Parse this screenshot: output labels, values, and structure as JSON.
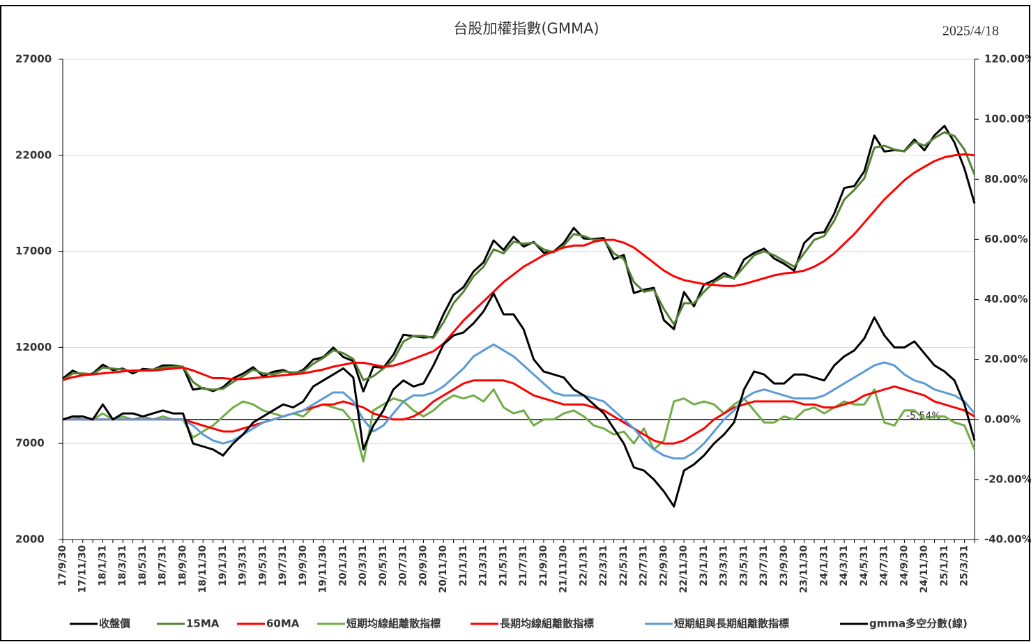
{
  "chart_data": {
    "type": "line",
    "title": "台股加權指數(GMMA)",
    "date": "2025/4/18",
    "annotation": "-5.54%",
    "categories": [
      "17/9/30",
      null,
      "17/11/30",
      null,
      "18/1/31",
      null,
      "18/3/31",
      null,
      "18/5/31",
      null,
      "18/7/31",
      null,
      "18/9/30",
      null,
      "18/11/30",
      null,
      "19/1/31",
      null,
      "19/3/31",
      null,
      "19/5/31",
      null,
      "19/7/31",
      null,
      "19/9/30",
      null,
      "19/11/30",
      null,
      "20/1/31",
      null,
      "20/3/31",
      null,
      "20/5/31",
      null,
      "20/7/31",
      null,
      "20/9/30",
      null,
      "20/11/30",
      null,
      "21/1/31",
      null,
      "21/3/31",
      null,
      "21/5/31",
      null,
      "21/7/31",
      null,
      "21/9/30",
      null,
      "21/11/30",
      null,
      "22/1/31",
      null,
      "22/3/31",
      null,
      "22/5/31",
      null,
      "22/7/31",
      null,
      "22/9/30",
      null,
      "22/11/30",
      null,
      "23/1/31",
      null,
      "23/3/31",
      null,
      "23/5/31",
      null,
      "23/7/31",
      null,
      "23/9/30",
      null,
      "23/11/30",
      null,
      "24/1/31",
      null,
      "24/3/31",
      null,
      "24/5/31",
      null,
      "24/7/31",
      null,
      "24/9/30",
      null,
      "24/11/30",
      null,
      "25/1/31",
      null,
      "25/3/31",
      null
    ],
    "ylim": [
      2000,
      27000
    ],
    "yticks": [
      2000,
      7000,
      12000,
      17000,
      22000,
      27000
    ],
    "y2lim": [
      -40,
      120
    ],
    "y2ticks": [
      {
        "value": -40,
        "label": "-40.00%"
      },
      {
        "value": -20,
        "label": "-20.00%"
      },
      {
        "value": 0,
        "label": "0.00%"
      },
      {
        "value": 20,
        "label": "20.00%"
      },
      {
        "value": 40,
        "label": "40.00%"
      },
      {
        "value": 60,
        "label": "60.00%"
      },
      {
        "value": 80,
        "label": "80.00%"
      },
      {
        "value": 100,
        "label": "100.00%"
      },
      {
        "value": 120,
        "label": "120.00%"
      }
    ],
    "grid": true,
    "series": [
      {
        "name": "收盤價",
        "color": "#000000",
        "values": [
          10380,
          10790,
          10560,
          10640,
          11100,
          10820,
          10900,
          10650,
          10880,
          10840,
          11060,
          11060,
          10990,
          9800,
          9890,
          9730,
          9930,
          10390,
          10640,
          10970,
          10500,
          10730,
          10820,
          10620,
          10830,
          11360,
          11490,
          11990,
          11500,
          11290,
          9710,
          10990,
          10940,
          11620,
          12660,
          12590,
          12520,
          12550,
          13720,
          14730,
          15140,
          15950,
          16430,
          17570,
          17070,
          17760,
          17250,
          17490,
          16930,
          16990,
          17430,
          18220,
          17670,
          17650,
          17690,
          16590,
          16810,
          14830,
          15000,
          15100,
          13420,
          12950,
          14880,
          14140,
          15270,
          15500,
          15870,
          15580,
          16580,
          16920,
          17140,
          16630,
          16350,
          16000,
          17430,
          17930,
          18000,
          18970,
          20300,
          20400,
          21170,
          23030,
          22200,
          22270,
          22220,
          22820,
          22260,
          23040,
          23530,
          22660,
          21300,
          19500
        ]
      },
      {
        "name": "15MA",
        "color": "#548235",
        "values": [
          10300,
          10650,
          10650,
          10600,
          10950,
          10900,
          10850,
          10750,
          10800,
          10850,
          10950,
          11000,
          11000,
          10200,
          9850,
          9800,
          9850,
          10200,
          10500,
          10850,
          10650,
          10600,
          10750,
          10700,
          10750,
          11150,
          11450,
          11850,
          11700,
          11400,
          10300,
          10500,
          10900,
          11350,
          12300,
          12600,
          12600,
          12500,
          13300,
          14300,
          14900,
          15700,
          16200,
          17100,
          16900,
          17500,
          17400,
          17450,
          17100,
          16950,
          17300,
          17900,
          17800,
          17600,
          17600,
          16900,
          16600,
          15400,
          14900,
          15000,
          14000,
          13200,
          14300,
          14300,
          14900,
          15400,
          15700,
          15600,
          16200,
          16800,
          17000,
          16800,
          16500,
          16200,
          16900,
          17600,
          17800,
          18600,
          19700,
          20200,
          20800,
          22400,
          22500,
          22300,
          22200,
          22700,
          22500,
          22900,
          23200,
          23000,
          22300,
          21000
        ]
      },
      {
        "name": "60MA",
        "color": "#ff0000",
        "values": [
          10300,
          10450,
          10550,
          10600,
          10650,
          10700,
          10750,
          10800,
          10800,
          10800,
          10850,
          10900,
          10950,
          10800,
          10600,
          10400,
          10400,
          10350,
          10350,
          10400,
          10450,
          10500,
          10550,
          10600,
          10650,
          10750,
          10850,
          11000,
          11100,
          11200,
          11200,
          11100,
          11000,
          11050,
          11200,
          11400,
          11600,
          11800,
          12200,
          12800,
          13400,
          13900,
          14400,
          14900,
          15400,
          15800,
          16200,
          16500,
          16800,
          17000,
          17200,
          17300,
          17300,
          17500,
          17600,
          17600,
          17450,
          17200,
          16800,
          16400,
          16000,
          15700,
          15500,
          15400,
          15300,
          15250,
          15200,
          15200,
          15300,
          15450,
          15600,
          15750,
          15850,
          15900,
          16000,
          16200,
          16500,
          16900,
          17400,
          17900,
          18500,
          19100,
          19700,
          20200,
          20700,
          21100,
          21400,
          21700,
          21900,
          22000,
          22050,
          22000
        ]
      },
      {
        "name": "短期均線組離散指標",
        "color": "#70ad47",
        "axis": "y2",
        "values": [
          0,
          1,
          0,
          0,
          2,
          0,
          1,
          0,
          1,
          0,
          1,
          0,
          0,
          -6,
          -4,
          -2,
          1,
          4,
          6,
          5,
          3,
          2,
          1,
          2,
          1,
          4,
          5,
          4,
          3,
          -1,
          -14,
          3,
          5,
          7,
          6,
          3,
          1,
          3,
          6,
          8,
          7,
          8,
          6,
          10,
          4,
          2,
          3,
          -2,
          0,
          0,
          2,
          3,
          1,
          -2,
          -3,
          -5,
          -4,
          -8,
          -3,
          -10,
          -7,
          6,
          7,
          5,
          6,
          5,
          2,
          5,
          7,
          3,
          -1,
          -1,
          1,
          0,
          3,
          4,
          2,
          4,
          6,
          5,
          5,
          10,
          -1,
          -2,
          3,
          3,
          0,
          1,
          1,
          -1,
          -2,
          -10
        ]
      },
      {
        "name": "長期均線組離散指標",
        "color": "#ff0000",
        "axis": "y2",
        "values": [
          0,
          0,
          0,
          0,
          0,
          0,
          0,
          0,
          0,
          0,
          0,
          0,
          0,
          -1,
          -2,
          -3,
          -4,
          -4,
          -3,
          -2,
          -1,
          0,
          1,
          2,
          3,
          4,
          5,
          5,
          6,
          5,
          4,
          2,
          1,
          0,
          0,
          1,
          3,
          6,
          8,
          10,
          12,
          13,
          13,
          13,
          13,
          12,
          10,
          8,
          7,
          6,
          5,
          5,
          5,
          4,
          3,
          1,
          -1,
          -3,
          -5,
          -7,
          -8,
          -8,
          -7,
          -5,
          -3,
          0,
          2,
          4,
          5,
          6,
          6,
          6,
          6,
          6,
          5,
          5,
          4,
          4,
          5,
          6,
          8,
          9,
          10,
          11,
          10,
          9,
          8,
          6,
          5,
          4,
          3,
          1
        ]
      },
      {
        "name": "短期組與長期組離散指標",
        "color": "#5b9bd5",
        "axis": "y2",
        "values": [
          0,
          0,
          0,
          0,
          0,
          0,
          0,
          0,
          0,
          0,
          0,
          0,
          0,
          -2,
          -5,
          -7,
          -8,
          -7,
          -5,
          -3,
          -1,
          0,
          1,
          2,
          3,
          5,
          7,
          9,
          9,
          6,
          0,
          -4,
          -2,
          2,
          6,
          8,
          8,
          9,
          11,
          14,
          17,
          21,
          23,
          25,
          23,
          21,
          18,
          15,
          12,
          9,
          8,
          8,
          8,
          7,
          6,
          3,
          0,
          -3,
          -7,
          -10,
          -12,
          -13,
          -13,
          -11,
          -8,
          -4,
          0,
          3,
          7,
          9,
          10,
          9,
          8,
          7,
          7,
          7,
          8,
          10,
          12,
          14,
          16,
          18,
          19,
          18,
          15,
          13,
          12,
          10,
          9,
          8,
          6,
          2
        ]
      },
      {
        "name": "gmma多空分數(線)",
        "color": "#000000",
        "axis": "y2",
        "values": [
          0,
          1,
          1,
          0,
          5,
          0,
          2,
          2,
          1,
          2,
          3,
          2,
          2,
          -8,
          -9,
          -10,
          -12,
          -8,
          -5,
          -1,
          1,
          3,
          5,
          4,
          6,
          11,
          13,
          15,
          17,
          14,
          -10,
          -2,
          3,
          10,
          13,
          11,
          12,
          18,
          25,
          28,
          29,
          32,
          36,
          42,
          35,
          35,
          30,
          20,
          16,
          15,
          14,
          10,
          8,
          5,
          2,
          -3,
          -8,
          -16,
          -17,
          -20,
          -24,
          -29,
          -17,
          -15,
          -12,
          -8,
          -5,
          -1,
          10,
          16,
          15,
          12,
          12,
          15,
          15,
          14,
          13,
          18,
          21,
          23,
          27,
          34,
          28,
          24,
          24,
          26,
          22,
          18,
          16,
          13,
          5,
          -7
        ]
      }
    ]
  }
}
